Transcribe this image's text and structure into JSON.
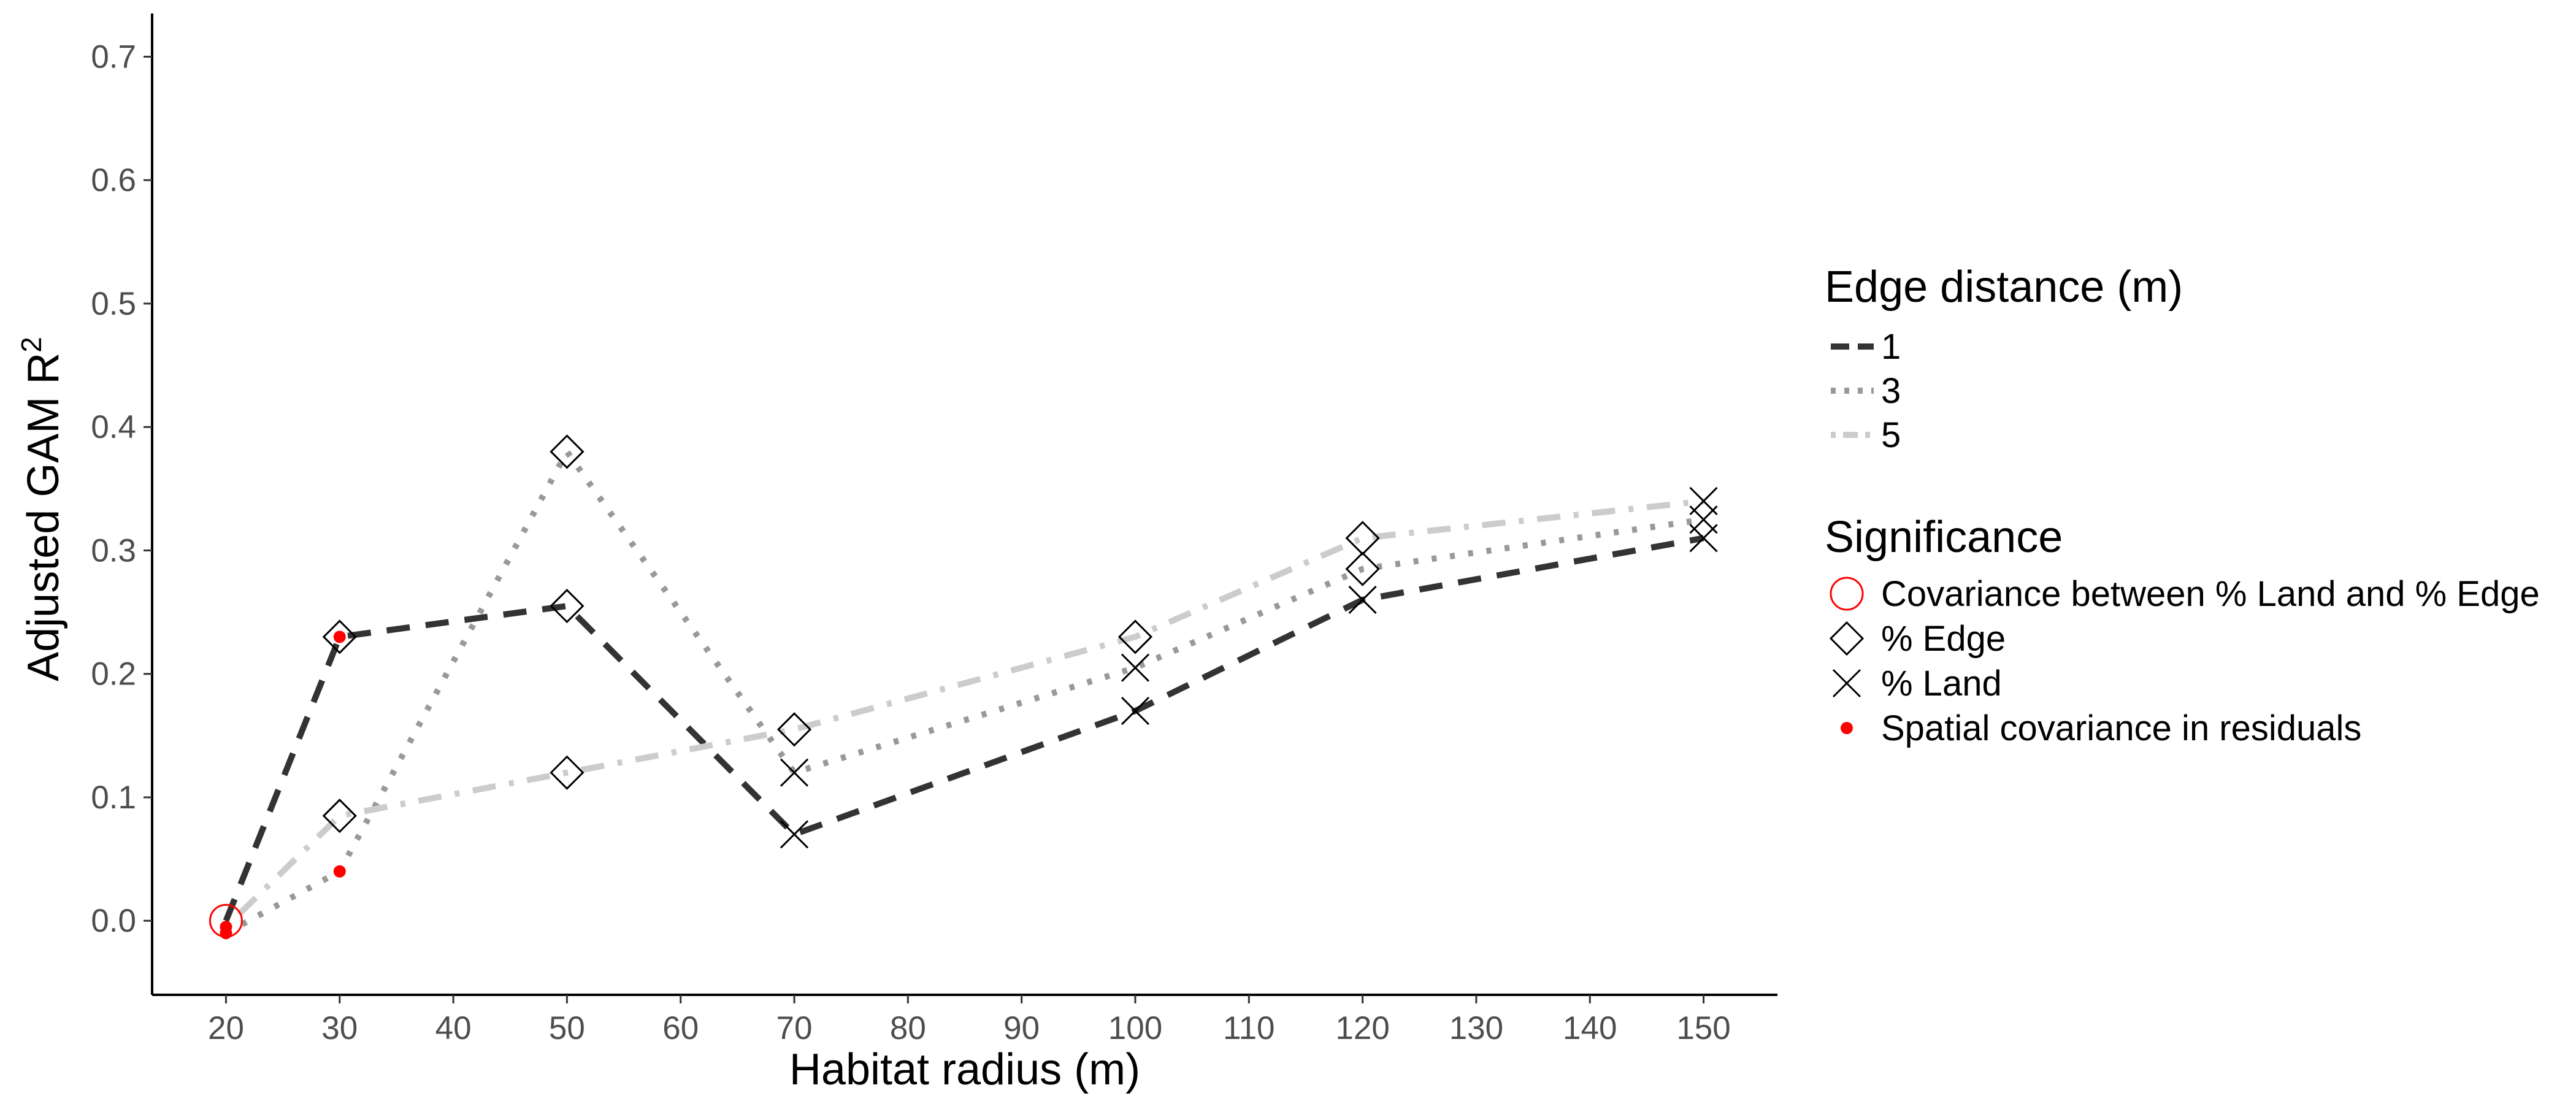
{
  "chart_data": {
    "type": "line",
    "xlabel": "Habitat radius (m)",
    "ylabel": "Adjusted GAM R",
    "ylabel_superscript": "2",
    "x_ticks": [
      20,
      30,
      40,
      50,
      60,
      70,
      80,
      90,
      100,
      110,
      120,
      130,
      140,
      150
    ],
    "y_ticks": [
      "0.0",
      "0.1",
      "0.2",
      "0.3",
      "0.4",
      "0.5",
      "0.6",
      "0.7"
    ],
    "xlim": [
      13.5,
      156.5
    ],
    "ylim": [
      -0.06,
      0.735
    ],
    "grid": false,
    "legend_position": "right",
    "legends": {
      "lines": {
        "title": "Edge distance (m)",
        "entries": [
          {
            "label": "1",
            "color": "#333333",
            "dash": "dashed"
          },
          {
            "label": "3",
            "color": "#999999",
            "dash": "dotted"
          },
          {
            "label": "5",
            "color": "#cccccc",
            "dash": "dotdash"
          }
        ]
      },
      "significance": {
        "title": "Significance",
        "entries": [
          {
            "label": "Covariance between % Land and % Edge",
            "marker": "circle-open",
            "color": "#ff0000"
          },
          {
            "label": "% Edge",
            "marker": "diamond-open",
            "color": "#000000"
          },
          {
            "label": "% Land",
            "marker": "cross",
            "color": "#000000"
          },
          {
            "label": "Spatial covariance in residuals",
            "marker": "dot",
            "color": "#ff0000"
          }
        ]
      }
    },
    "series": [
      {
        "name": "1",
        "color": "#333333",
        "dash": "dashed",
        "points": [
          {
            "x": 20,
            "y": 0.0,
            "markers": [
              "circle-open"
            ]
          },
          {
            "x": 30,
            "y": 0.23,
            "markers": [
              "diamond-open",
              "dot"
            ]
          },
          {
            "x": 50,
            "y": 0.255,
            "markers": [
              "diamond-open"
            ]
          },
          {
            "x": 70,
            "y": 0.07,
            "markers": [
              "cross"
            ]
          },
          {
            "x": 100,
            "y": 0.17,
            "markers": [
              "cross"
            ]
          },
          {
            "x": 120,
            "y": 0.26,
            "markers": [
              "cross"
            ]
          },
          {
            "x": 150,
            "y": 0.31,
            "markers": [
              "cross"
            ]
          }
        ]
      },
      {
        "name": "3",
        "color": "#999999",
        "dash": "dotted",
        "points": [
          {
            "x": 20,
            "y": -0.01,
            "markers": [
              "dot"
            ]
          },
          {
            "x": 30,
            "y": 0.04,
            "markers": [
              "dot"
            ]
          },
          {
            "x": 50,
            "y": 0.38,
            "markers": [
              "diamond-open"
            ]
          },
          {
            "x": 70,
            "y": 0.12,
            "markers": [
              "cross"
            ]
          },
          {
            "x": 100,
            "y": 0.205,
            "markers": [
              "cross"
            ]
          },
          {
            "x": 120,
            "y": 0.285,
            "markers": [
              "diamond-open"
            ]
          },
          {
            "x": 150,
            "y": 0.325,
            "markers": [
              "cross"
            ]
          }
        ]
      },
      {
        "name": "5",
        "color": "#cccccc",
        "dash": "dotdash",
        "points": [
          {
            "x": 20,
            "y": -0.005,
            "markers": [
              "dot"
            ]
          },
          {
            "x": 30,
            "y": 0.085,
            "markers": [
              "diamond-open"
            ]
          },
          {
            "x": 50,
            "y": 0.12,
            "markers": [
              "diamond-open"
            ]
          },
          {
            "x": 70,
            "y": 0.155,
            "markers": [
              "diamond-open"
            ]
          },
          {
            "x": 100,
            "y": 0.23,
            "markers": [
              "diamond-open"
            ]
          },
          {
            "x": 120,
            "y": 0.31,
            "markers": [
              "diamond-open"
            ]
          },
          {
            "x": 150,
            "y": 0.34,
            "markers": [
              "cross"
            ]
          }
        ]
      }
    ]
  }
}
